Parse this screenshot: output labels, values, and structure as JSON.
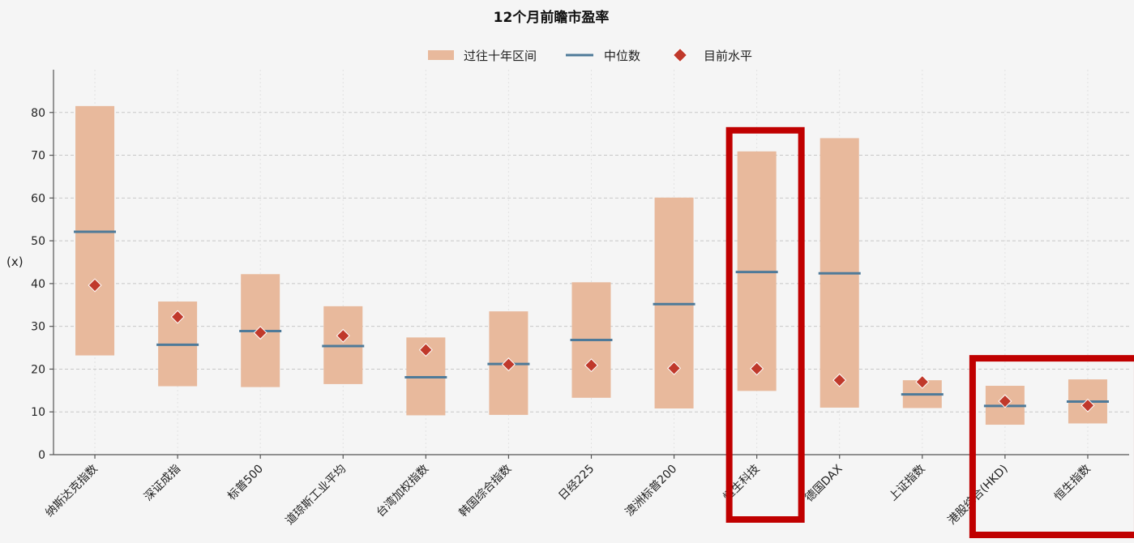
{
  "chart_data": {
    "type": "range-bar",
    "title": "12个月前瞻市盈率",
    "xlabel": "",
    "ylabel": "(x)",
    "ylim": [
      0,
      90
    ],
    "yticks": [
      0,
      10,
      20,
      30,
      40,
      50,
      60,
      70,
      80
    ],
    "grid": true,
    "legend_position": "top-center",
    "legend": {
      "range": "过往十年区间",
      "median": "中位数",
      "current": "目前水平"
    },
    "categories": [
      "纳斯达克指数",
      "深证成指",
      "标普500",
      "道琼斯工业平均",
      "台湾加权指数",
      "韩国综合指数",
      "日经225",
      "澳洲标普200",
      "恒生科技",
      "德国DAX",
      "上证指数",
      "港股综合(HKD)",
      "恒生指数"
    ],
    "range_low": [
      23.2,
      16.0,
      15.8,
      16.5,
      9.2,
      9.3,
      13.3,
      10.8,
      14.9,
      11.0,
      10.9,
      7.0,
      7.3
    ],
    "range_high": [
      81.5,
      35.8,
      42.2,
      34.7,
      27.4,
      33.5,
      40.3,
      60.1,
      70.9,
      74.0,
      17.4,
      16.1,
      17.6
    ],
    "median": [
      52.1,
      25.7,
      28.9,
      25.4,
      18.1,
      21.2,
      26.8,
      35.2,
      42.7,
      42.4,
      14.1,
      11.4,
      12.4
    ],
    "current": [
      39.6,
      32.2,
      28.5,
      27.8,
      24.5,
      21.1,
      20.9,
      20.2,
      20.1,
      17.4,
      17.0,
      12.5,
      11.5
    ],
    "colors": {
      "range": "#e8b99c",
      "median": "#4e7a99",
      "current": "#c0392b",
      "highlight": "#c00000"
    },
    "highlight_groups": [
      [
        "恒生科技"
      ],
      [
        "港股综合(HKD)",
        "恒生指数"
      ]
    ]
  }
}
